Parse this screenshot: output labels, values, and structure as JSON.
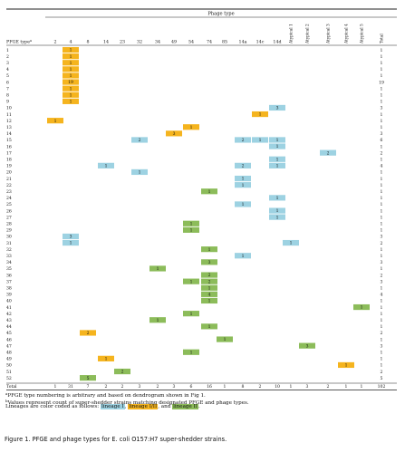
{
  "header": {
    "group_label": "Phage type",
    "row_label": "PFGE type",
    "row_label_sup": "a",
    "columns": [
      "2",
      "4",
      "8",
      "14",
      "23",
      "32",
      "34",
      "49",
      "54",
      "74",
      "85",
      "14a",
      "14c",
      "14d",
      "Atypical 1",
      "Atypical 2",
      "Atypical 3",
      "Atypical 4",
      "Atypical 5",
      "Total"
    ]
  },
  "colors": {
    "I": "#9dd2e2",
    "I/II": "#f5b41e",
    "II": "#8cbc5a"
  },
  "rows": [
    {
      "id": "1",
      "cells": [
        {
          "c": 1,
          "v": "1",
          "L": "I/II"
        }
      ],
      "total": "1"
    },
    {
      "id": "2",
      "cells": [
        {
          "c": 1,
          "v": "1",
          "L": "I/II"
        }
      ],
      "total": "1"
    },
    {
      "id": "3",
      "cells": [
        {
          "c": 1,
          "v": "1",
          "L": "I/II"
        }
      ],
      "total": "1"
    },
    {
      "id": "4",
      "cells": [
        {
          "c": 1,
          "v": "1",
          "L": "I/II"
        }
      ],
      "total": "1"
    },
    {
      "id": "5",
      "cells": [
        {
          "c": 1,
          "v": "1",
          "L": "I/II"
        }
      ],
      "total": "1"
    },
    {
      "id": "6",
      "cells": [
        {
          "c": 1,
          "v": "19",
          "L": "I/II"
        }
      ],
      "total": "19"
    },
    {
      "id": "7",
      "cells": [
        {
          "c": 1,
          "v": "1",
          "L": "I/II"
        }
      ],
      "total": "1"
    },
    {
      "id": "8",
      "cells": [
        {
          "c": 1,
          "v": "1",
          "L": "I/II"
        }
      ],
      "total": "1"
    },
    {
      "id": "9",
      "cells": [
        {
          "c": 1,
          "v": "1",
          "L": "I/II"
        }
      ],
      "total": "1"
    },
    {
      "id": "10",
      "cells": [
        {
          "c": 13,
          "v": "3",
          "L": "I"
        }
      ],
      "total": "3"
    },
    {
      "id": "11",
      "cells": [
        {
          "c": 12,
          "v": "1",
          "L": "I/II"
        }
      ],
      "total": "1"
    },
    {
      "id": "12",
      "cells": [
        {
          "c": 0,
          "v": "1",
          "L": "I/II"
        }
      ],
      "total": "1"
    },
    {
      "id": "13",
      "cells": [
        {
          "c": 8,
          "v": "1",
          "L": "I/II"
        }
      ],
      "total": "1"
    },
    {
      "id": "14",
      "cells": [
        {
          "c": 7,
          "v": "3",
          "L": "I/II"
        }
      ],
      "total": "3"
    },
    {
      "id": "15",
      "cells": [
        {
          "c": 5,
          "v": "2",
          "L": "I"
        },
        {
          "c": 11,
          "v": "2",
          "L": "I"
        },
        {
          "c": 12,
          "v": "1",
          "L": "I"
        },
        {
          "c": 13,
          "v": "1",
          "L": "I"
        }
      ],
      "total": "6"
    },
    {
      "id": "16",
      "cells": [
        {
          "c": 13,
          "v": "1",
          "L": "I"
        }
      ],
      "total": "1"
    },
    {
      "id": "17",
      "cells": [
        {
          "c": 16,
          "v": "2",
          "L": "I"
        }
      ],
      "total": "2"
    },
    {
      "id": "18",
      "cells": [
        {
          "c": 13,
          "v": "1",
          "L": "I"
        }
      ],
      "total": "1"
    },
    {
      "id": "19",
      "cells": [
        {
          "c": 3,
          "v": "1",
          "L": "I"
        },
        {
          "c": 11,
          "v": "2",
          "L": "I"
        },
        {
          "c": 13,
          "v": "1",
          "L": "I"
        }
      ],
      "total": "4"
    },
    {
      "id": "20",
      "cells": [
        {
          "c": 5,
          "v": "1",
          "L": "I"
        }
      ],
      "total": "1"
    },
    {
      "id": "21",
      "cells": [
        {
          "c": 11,
          "v": "1",
          "L": "I"
        }
      ],
      "total": "1"
    },
    {
      "id": "22",
      "cells": [
        {
          "c": 11,
          "v": "1",
          "L": "I"
        }
      ],
      "total": "1"
    },
    {
      "id": "23",
      "cells": [
        {
          "c": 9,
          "v": "1",
          "L": "II"
        }
      ],
      "total": "1"
    },
    {
      "id": "24",
      "cells": [
        {
          "c": 13,
          "v": "1",
          "L": "I"
        }
      ],
      "total": "1"
    },
    {
      "id": "25",
      "cells": [
        {
          "c": 11,
          "v": "1",
          "L": "I"
        }
      ],
      "total": "1"
    },
    {
      "id": "26",
      "cells": [
        {
          "c": 13,
          "v": "1",
          "L": "I"
        }
      ],
      "total": "1"
    },
    {
      "id": "27",
      "cells": [
        {
          "c": 13,
          "v": "1",
          "L": "I"
        }
      ],
      "total": "1"
    },
    {
      "id": "28",
      "cells": [
        {
          "c": 8,
          "v": "1",
          "L": "II"
        }
      ],
      "total": "1"
    },
    {
      "id": "29",
      "cells": [
        {
          "c": 8,
          "v": "1",
          "L": "II"
        }
      ],
      "total": "1"
    },
    {
      "id": "30",
      "cells": [
        {
          "c": 1,
          "v": "3",
          "L": "I"
        }
      ],
      "total": "3"
    },
    {
      "id": "31",
      "cells": [
        {
          "c": 1,
          "v": "1",
          "L": "I"
        },
        {
          "c": 14,
          "v": "1",
          "L": "I"
        }
      ],
      "total": "2"
    },
    {
      "id": "32",
      "cells": [
        {
          "c": 9,
          "v": "1",
          "L": "II"
        }
      ],
      "total": "1"
    },
    {
      "id": "33",
      "cells": [
        {
          "c": 11,
          "v": "1",
          "L": "I"
        }
      ],
      "total": "1"
    },
    {
      "id": "34",
      "cells": [
        {
          "c": 9,
          "v": "3",
          "L": "II"
        }
      ],
      "total": "3"
    },
    {
      "id": "35",
      "cells": [
        {
          "c": 6,
          "v": "1",
          "L": "II"
        }
      ],
      "total": "1"
    },
    {
      "id": "36",
      "cells": [
        {
          "c": 9,
          "v": "2",
          "L": "II"
        }
      ],
      "total": "2"
    },
    {
      "id": "37",
      "cells": [
        {
          "c": 8,
          "v": "1",
          "L": "II"
        },
        {
          "c": 9,
          "v": "2",
          "L": "II"
        }
      ],
      "total": "3"
    },
    {
      "id": "38",
      "cells": [
        {
          "c": 9,
          "v": "1",
          "L": "II"
        }
      ],
      "total": "1"
    },
    {
      "id": "39",
      "cells": [
        {
          "c": 9,
          "v": "4",
          "L": "II"
        }
      ],
      "total": "4"
    },
    {
      "id": "40",
      "cells": [
        {
          "c": 9,
          "v": "1",
          "L": "II"
        }
      ],
      "total": "1"
    },
    {
      "id": "41",
      "cells": [
        {
          "c": 18,
          "v": "1",
          "L": "II"
        }
      ],
      "total": "1"
    },
    {
      "id": "42",
      "cells": [
        {
          "c": 8,
          "v": "1",
          "L": "II"
        }
      ],
      "total": "1"
    },
    {
      "id": "43",
      "cells": [
        {
          "c": 6,
          "v": "1",
          "L": "II"
        }
      ],
      "total": "1"
    },
    {
      "id": "44",
      "cells": [
        {
          "c": 9,
          "v": "1",
          "L": "II"
        }
      ],
      "total": "1"
    },
    {
      "id": "45",
      "cells": [
        {
          "c": 2,
          "v": "2",
          "L": "I/II"
        }
      ],
      "total": "2"
    },
    {
      "id": "46",
      "cells": [
        {
          "c": 10,
          "v": "1",
          "L": "II"
        }
      ],
      "total": "1"
    },
    {
      "id": "47",
      "cells": [
        {
          "c": 15,
          "v": "3",
          "L": "II"
        }
      ],
      "total": "3"
    },
    {
      "id": "48",
      "cells": [
        {
          "c": 8,
          "v": "1",
          "L": "II"
        }
      ],
      "total": "1"
    },
    {
      "id": "49",
      "cells": [
        {
          "c": 3,
          "v": "1",
          "L": "I/II"
        }
      ],
      "total": "1"
    },
    {
      "id": "50",
      "cells": [
        {
          "c": 17,
          "v": "1",
          "L": "I/II"
        }
      ],
      "total": "1"
    },
    {
      "id": "51",
      "cells": [
        {
          "c": 4,
          "v": "2",
          "L": "II"
        }
      ],
      "total": "2"
    },
    {
      "id": "52",
      "cells": [
        {
          "c": 2,
          "v": "5",
          "L": "II"
        }
      ],
      "total": "5"
    }
  ],
  "totals": {
    "label": "Total",
    "values": [
      "1",
      "31",
      "7",
      "2",
      "2",
      "3",
      "2",
      "3",
      "6",
      "16",
      "1",
      "8",
      "2",
      "10",
      "1",
      "3",
      "2",
      "1",
      "1",
      "102"
    ]
  },
  "footnotes": {
    "a_text": "PFGE type numbering is arbitrary and based on dendrogram shown in Fig 1.",
    "b_text": "Values represent count of super-shedder strains matching designated PFGE and phage types.",
    "lineage_prefix": "Lineages are color coded as follows: ",
    "lineage_I": "lineage I",
    "sep1": ", ",
    "lineage_III": "lineage I/II",
    "sep2": ", and ",
    "lineage_II": "lineage II",
    "end": "."
  },
  "caption": "Figure 1. PFGE and phage types for E. coli O157:H7 super-shedder strains."
}
